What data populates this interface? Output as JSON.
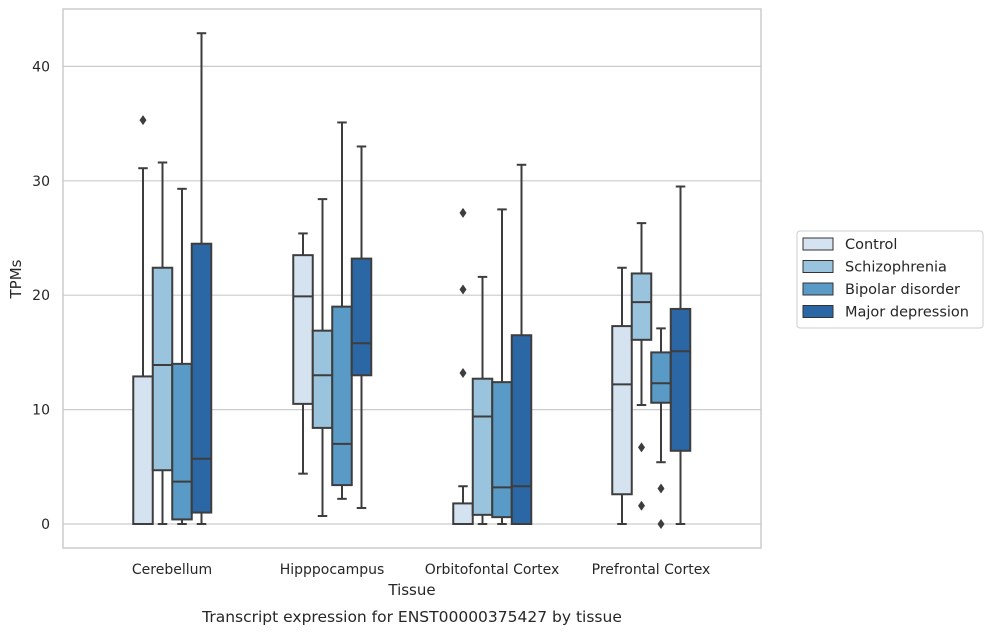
{
  "chart_data": {
    "type": "boxplot",
    "caption": "Transcript expression for ENST00000375427 by tissue",
    "xlabel": "Tissue",
    "ylabel": "TPMs",
    "ylim": [
      -2.1,
      45.0
    ],
    "yticks": [
      0,
      10,
      20,
      30,
      40
    ],
    "grid": "horizontal",
    "legend_position": "right",
    "categories": [
      "Cerebellum",
      "Hipppocampus",
      "Orbitofontal Cortex",
      "Prefrontal Cortex"
    ],
    "series": [
      {
        "name": "Control",
        "color": "#d5e2f0",
        "boxes": [
          {
            "whisker_low": 0,
            "q1": 0,
            "median": 0,
            "q3": 12.9,
            "whisker_high": 31.1,
            "outliers": [
              35.3
            ]
          },
          {
            "whisker_low": 4.4,
            "q1": 10.5,
            "median": 19.9,
            "q3": 23.5,
            "whisker_high": 25.4,
            "outliers": []
          },
          {
            "whisker_low": 0,
            "q1": 0,
            "median": 0,
            "q3": 1.8,
            "whisker_high": 3.3,
            "outliers": [
              13.2,
              20.5,
              27.2
            ]
          },
          {
            "whisker_low": 0,
            "q1": 2.6,
            "median": 12.2,
            "q3": 17.3,
            "whisker_high": 22.4,
            "outliers": []
          }
        ]
      },
      {
        "name": "Schizophrenia",
        "color": "#9ac3de",
        "boxes": [
          {
            "whisker_low": 0,
            "q1": 4.7,
            "median": 13.9,
            "q3": 22.4,
            "whisker_high": 31.6,
            "outliers": []
          },
          {
            "whisker_low": 0.7,
            "q1": 8.4,
            "median": 13.0,
            "q3": 16.9,
            "whisker_high": 28.4,
            "outliers": []
          },
          {
            "whisker_low": 0,
            "q1": 0.8,
            "median": 9.4,
            "q3": 12.7,
            "whisker_high": 21.6,
            "outliers": []
          },
          {
            "whisker_low": 10.4,
            "q1": 16.1,
            "median": 19.4,
            "q3": 21.9,
            "whisker_high": 26.3,
            "outliers": [
              6.7,
              1.6
            ]
          }
        ]
      },
      {
        "name": "Bipolar disorder",
        "color": "#5a9ac6",
        "boxes": [
          {
            "whisker_low": 0,
            "q1": 0.4,
            "median": 3.7,
            "q3": 14.0,
            "whisker_high": 29.3,
            "outliers": []
          },
          {
            "whisker_low": 2.2,
            "q1": 3.4,
            "median": 7.0,
            "q3": 19.0,
            "whisker_high": 35.1,
            "outliers": []
          },
          {
            "whisker_low": 0,
            "q1": 0.6,
            "median": 3.2,
            "q3": 12.4,
            "whisker_high": 27.5,
            "outliers": []
          },
          {
            "whisker_low": 5.4,
            "q1": 10.6,
            "median": 12.3,
            "q3": 15.0,
            "whisker_high": 17.1,
            "outliers": [
              3.1,
              0
            ]
          }
        ]
      },
      {
        "name": "Major depression",
        "color": "#2b67a5",
        "boxes": [
          {
            "whisker_low": 0,
            "q1": 1.0,
            "median": 5.7,
            "q3": 24.5,
            "whisker_high": 42.9,
            "outliers": []
          },
          {
            "whisker_low": 1.4,
            "q1": 13.0,
            "median": 15.8,
            "q3": 23.2,
            "whisker_high": 33.0,
            "outliers": []
          },
          {
            "whisker_low": 0,
            "q1": 0,
            "median": 3.3,
            "q3": 16.5,
            "whisker_high": 31.4,
            "outliers": []
          },
          {
            "whisker_low": 0,
            "q1": 6.4,
            "median": 15.1,
            "q3": 18.8,
            "whisker_high": 29.5,
            "outliers": []
          }
        ]
      }
    ]
  }
}
